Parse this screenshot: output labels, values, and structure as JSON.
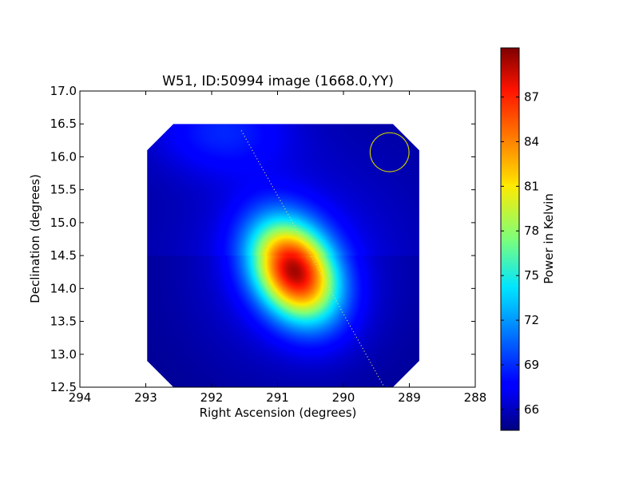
{
  "chart_data": {
    "type": "heatmap",
    "title": "W51, ID:50994 image (1668.0,YY)",
    "xlabel": "Right Ascension (degrees)",
    "ylabel": "Declination (degrees)",
    "xlim": [
      294,
      288
    ],
    "ylim": [
      12.5,
      17.0
    ],
    "x_ticks": [
      294,
      293,
      292,
      291,
      290,
      289,
      288
    ],
    "y_ticks": [
      12.5,
      13.0,
      13.5,
      14.0,
      14.5,
      15.0,
      15.5,
      16.0,
      16.5,
      17.0
    ],
    "x_tick_labels": [
      "294",
      "293",
      "292",
      "291",
      "290",
      "289",
      "288"
    ],
    "y_tick_labels": [
      "12.5",
      "13.0",
      "13.5",
      "14.0",
      "14.5",
      "15.0",
      "15.5",
      "16.0",
      "16.5",
      "17.0"
    ],
    "image_extent": {
      "ra": [
        292.98,
        288.85
      ],
      "dec": [
        12.5,
        16.5
      ],
      "corner_cut_deg": 0.4
    },
    "colormap": "jet",
    "source": {
      "ra": 290.75,
      "dec": 14.27,
      "peak": 89.5,
      "sigma_major_deg": 0.55,
      "sigma_minor_deg": 0.4,
      "angle_deg": -30
    },
    "background_level": 65.0,
    "secondary_glow": {
      "ra": 291.85,
      "dec": 16.4,
      "level": 68.2
    },
    "beam_circle": {
      "ra": 289.3,
      "dec": 16.07,
      "radius_deg": 0.36,
      "color": "#c8c800"
    },
    "galactic_plane_line": {
      "from": [
        291.55,
        16.4
      ],
      "to": [
        289.38,
        12.5
      ]
    },
    "colorbar": {
      "label": "Power in Kelvin",
      "min": 64.6,
      "max": 90.3,
      "ticks": [
        66,
        69,
        72,
        75,
        78,
        81,
        84,
        87
      ],
      "tick_labels": [
        "66",
        "69",
        "72",
        "75",
        "78",
        "81",
        "84",
        "87"
      ]
    }
  }
}
